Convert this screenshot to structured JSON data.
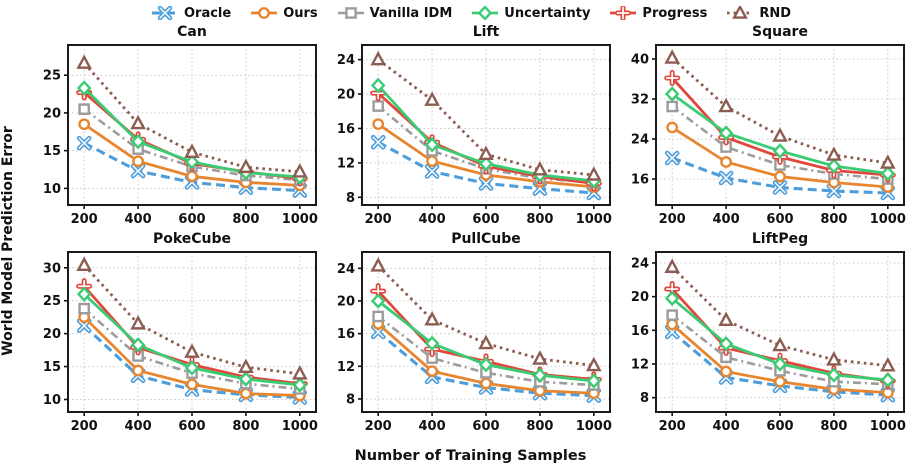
{
  "figure": {
    "ylabel": "World Model Prediction Error",
    "xlabel": "Number of Training Samples"
  },
  "legend": {
    "items": [
      {
        "label": "Oracle",
        "color": "#4E9EDB",
        "marker": "x",
        "line_style": "dashed"
      },
      {
        "label": "Ours",
        "color": "#E8862F",
        "marker": "circle",
        "line_style": "solid"
      },
      {
        "label": "Vanilla IDM",
        "color": "#9C9C9C",
        "marker": "square",
        "line_style": "dashdot"
      },
      {
        "label": "Uncertainty",
        "color": "#3BCB72",
        "marker": "diamond",
        "line_style": "solid"
      },
      {
        "label": "Progress",
        "color": "#E0483E",
        "marker": "plus",
        "line_style": "solid"
      },
      {
        "label": "RND",
        "color": "#8D5C50",
        "marker": "triangle",
        "line_style": "dotted"
      }
    ]
  },
  "chart_data": [
    {
      "type": "line",
      "title": "Can",
      "x": [
        200,
        400,
        600,
        800,
        1000
      ],
      "xlim": [
        140,
        1060
      ],
      "xticks": [
        200,
        400,
        600,
        800,
        1000
      ],
      "ylim": [
        7.8,
        29.0
      ],
      "yticks": [
        10,
        15,
        20,
        25
      ],
      "grid": true,
      "series": [
        {
          "name": "Oracle",
          "values": [
            16.0,
            12.3,
            10.8,
            10.1,
            9.7
          ]
        },
        {
          "name": "Ours",
          "values": [
            18.5,
            13.6,
            11.6,
            10.8,
            10.4
          ]
        },
        {
          "name": "Vanilla IDM",
          "values": [
            20.5,
            15.2,
            12.9,
            11.7,
            11.1
          ]
        },
        {
          "name": "Uncertainty",
          "values": [
            23.3,
            16.2,
            13.5,
            12.1,
            11.5
          ]
        },
        {
          "name": "Progress",
          "values": [
            22.7,
            16.5,
            13.3,
            12.2,
            11.3
          ]
        },
        {
          "name": "RND",
          "values": [
            26.6,
            18.6,
            14.8,
            12.8,
            12.2
          ]
        }
      ]
    },
    {
      "type": "line",
      "title": "Lift",
      "x": [
        200,
        400,
        600,
        800,
        1000
      ],
      "xlim": [
        140,
        1060
      ],
      "xticks": [
        200,
        400,
        600,
        800,
        1000
      ],
      "ylim": [
        7.1,
        25.7
      ],
      "yticks": [
        8,
        12,
        16,
        20,
        24
      ],
      "grid": true,
      "series": [
        {
          "name": "Oracle",
          "values": [
            14.4,
            11.0,
            9.6,
            9.0,
            8.5
          ]
        },
        {
          "name": "Ours",
          "values": [
            16.5,
            12.2,
            10.6,
            9.8,
            9.2
          ]
        },
        {
          "name": "Vanilla IDM",
          "values": [
            18.6,
            13.4,
            11.3,
            10.2,
            9.7
          ]
        },
        {
          "name": "Uncertainty",
          "values": [
            21.0,
            14.1,
            11.9,
            10.6,
            9.9
          ]
        },
        {
          "name": "Progress",
          "values": [
            20.1,
            14.4,
            11.6,
            10.4,
            9.6
          ]
        },
        {
          "name": "RND",
          "values": [
            24.0,
            19.3,
            13.0,
            11.2,
            10.6
          ]
        }
      ]
    },
    {
      "type": "line",
      "title": "Square",
      "x": [
        200,
        400,
        600,
        800,
        1000
      ],
      "xlim": [
        140,
        1060
      ],
      "xticks": [
        200,
        400,
        600,
        800,
        1000
      ],
      "ylim": [
        10.8,
        42.8
      ],
      "yticks": [
        16,
        24,
        32,
        40
      ],
      "grid": true,
      "series": [
        {
          "name": "Oracle",
          "values": [
            20.2,
            16.2,
            14.3,
            13.6,
            13.2
          ]
        },
        {
          "name": "Ours",
          "values": [
            26.3,
            19.4,
            16.5,
            15.3,
            14.4
          ]
        },
        {
          "name": "Vanilla IDM",
          "values": [
            30.5,
            22.4,
            18.8,
            17.0,
            16.0
          ]
        },
        {
          "name": "Uncertainty",
          "values": [
            33.0,
            25.2,
            21.6,
            18.6,
            17.1
          ]
        },
        {
          "name": "Progress",
          "values": [
            36.2,
            24.3,
            20.4,
            17.7,
            16.8
          ]
        },
        {
          "name": "RND",
          "values": [
            40.2,
            30.5,
            24.6,
            20.8,
            19.2
          ]
        }
      ]
    },
    {
      "type": "line",
      "title": "PokeCube",
      "x": [
        200,
        400,
        600,
        800,
        1000
      ],
      "xlim": [
        140,
        1060
      ],
      "xticks": [
        200,
        400,
        600,
        800,
        1000
      ],
      "ylim": [
        8.1,
        32.4
      ],
      "yticks": [
        10,
        15,
        20,
        25,
        30
      ],
      "grid": true,
      "series": [
        {
          "name": "Oracle",
          "values": [
            21.2,
            13.6,
            11.5,
            10.7,
            10.3
          ]
        },
        {
          "name": "Ours",
          "values": [
            22.5,
            14.4,
            12.3,
            10.9,
            10.6
          ]
        },
        {
          "name": "Vanilla IDM",
          "values": [
            23.8,
            16.6,
            14.0,
            12.4,
            11.6
          ]
        },
        {
          "name": "Uncertainty",
          "values": [
            26.0,
            18.3,
            14.8,
            13.1,
            12.2
          ]
        },
        {
          "name": "Progress",
          "values": [
            27.2,
            17.9,
            15.3,
            13.4,
            12.4
          ]
        },
        {
          "name": "RND",
          "values": [
            30.4,
            21.5,
            17.2,
            14.9,
            13.9
          ]
        }
      ]
    },
    {
      "type": "line",
      "title": "PullCube",
      "x": [
        200,
        400,
        600,
        800,
        1000
      ],
      "xlim": [
        140,
        1060
      ],
      "xticks": [
        200,
        400,
        600,
        800,
        1000
      ],
      "ylim": [
        6.4,
        26.0
      ],
      "yticks": [
        8,
        12,
        16,
        20,
        24
      ],
      "grid": true,
      "series": [
        {
          "name": "Oracle",
          "values": [
            16.2,
            10.7,
            9.4,
            8.7,
            8.4
          ]
        },
        {
          "name": "Ours",
          "values": [
            17.2,
            11.4,
            9.9,
            9.0,
            8.7
          ]
        },
        {
          "name": "Vanilla IDM",
          "values": [
            18.1,
            13.0,
            11.2,
            10.1,
            9.7
          ]
        },
        {
          "name": "Uncertainty",
          "values": [
            20.0,
            14.8,
            12.2,
            10.9,
            10.2
          ]
        },
        {
          "name": "Progress",
          "values": [
            21.2,
            14.1,
            12.6,
            11.0,
            10.4
          ]
        },
        {
          "name": "RND",
          "values": [
            24.3,
            17.7,
            14.8,
            12.9,
            12.1
          ]
        }
      ]
    },
    {
      "type": "line",
      "title": "LiftPeg",
      "x": [
        200,
        400,
        600,
        800,
        1000
      ],
      "xlim": [
        140,
        1060
      ],
      "xticks": [
        200,
        400,
        600,
        800,
        1000
      ],
      "ylim": [
        6.3,
        25.3
      ],
      "yticks": [
        8,
        12,
        16,
        20,
        24
      ],
      "grid": true,
      "series": [
        {
          "name": "Oracle",
          "values": [
            15.8,
            10.4,
            9.4,
            8.7,
            8.3
          ]
        },
        {
          "name": "Ours",
          "values": [
            16.7,
            11.1,
            9.9,
            9.0,
            8.6
          ]
        },
        {
          "name": "Vanilla IDM",
          "values": [
            17.8,
            12.8,
            11.2,
            9.9,
            9.6
          ]
        },
        {
          "name": "Uncertainty",
          "values": [
            19.8,
            14.4,
            12.0,
            10.7,
            10.1
          ]
        },
        {
          "name": "Progress",
          "values": [
            20.9,
            13.9,
            12.4,
            10.9,
            10.0
          ]
        },
        {
          "name": "RND",
          "values": [
            23.5,
            17.2,
            14.2,
            12.5,
            11.8
          ]
        }
      ]
    }
  ]
}
